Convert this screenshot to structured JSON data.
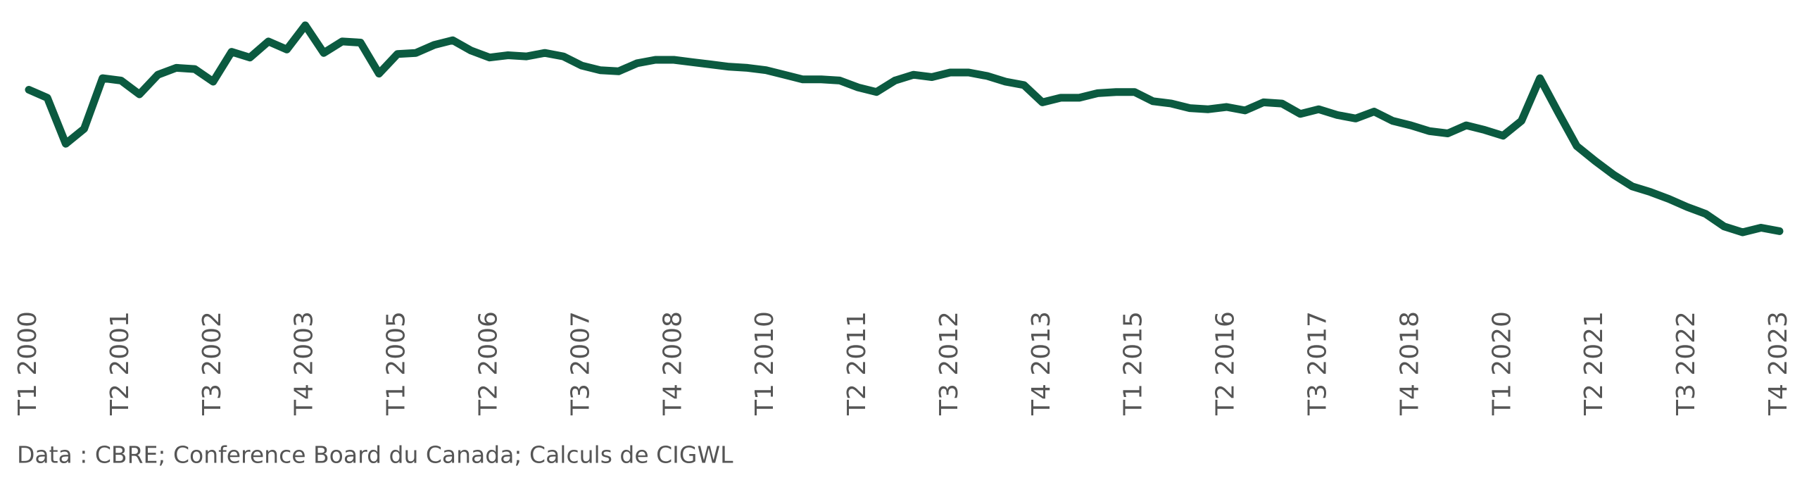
{
  "chart_data": {
    "type": "line",
    "categories": [
      "T1 2000",
      null,
      null,
      null,
      null,
      "T2 2001",
      null,
      null,
      null,
      null,
      "T3 2002",
      null,
      null,
      null,
      null,
      "T4 2003",
      null,
      null,
      null,
      null,
      "T1 2005",
      null,
      null,
      null,
      null,
      "T2 2006",
      null,
      null,
      null,
      null,
      "T3 2007",
      null,
      null,
      null,
      null,
      "T4 2008",
      null,
      null,
      null,
      null,
      "T1 2010",
      null,
      null,
      null,
      null,
      "T2 2011",
      null,
      null,
      null,
      null,
      "T3 2012",
      null,
      null,
      null,
      null,
      "T4 2013",
      null,
      null,
      null,
      null,
      "T1 2015",
      null,
      null,
      null,
      null,
      "T2 2016",
      null,
      null,
      null,
      null,
      "T3 2017",
      null,
      null,
      null,
      null,
      "T4 2018",
      null,
      null,
      null,
      null,
      "T1 2020",
      null,
      null,
      null,
      null,
      "T2 2021",
      null,
      null,
      null,
      null,
      "T3 2022",
      null,
      null,
      null,
      null,
      "T4 2023"
    ],
    "values": [
      172,
      165,
      125,
      138,
      182,
      180,
      168,
      185,
      191,
      190,
      179,
      205,
      200,
      214,
      207,
      228,
      204,
      214,
      213,
      186,
      203,
      204,
      211,
      215,
      206,
      200,
      202,
      201,
      204,
      201,
      193,
      189,
      188,
      195,
      198,
      198,
      196,
      194,
      192,
      191,
      189,
      185,
      181,
      181,
      180,
      174,
      170,
      180,
      185,
      183,
      187,
      187,
      184,
      179,
      176,
      161,
      165,
      165,
      169,
      170,
      170,
      162,
      160,
      156,
      155,
      157,
      154,
      161,
      160,
      151,
      155,
      150,
      147,
      153,
      145,
      141,
      136,
      134,
      141,
      137,
      132,
      145,
      182,
      152,
      123,
      110,
      98,
      88,
      83,
      77,
      70,
      64,
      53,
      48,
      52,
      49
    ],
    "color": "#0b5a40",
    "source": "Data : CBRE; Conference Board du Canada; Calculs de CIGWL"
  }
}
